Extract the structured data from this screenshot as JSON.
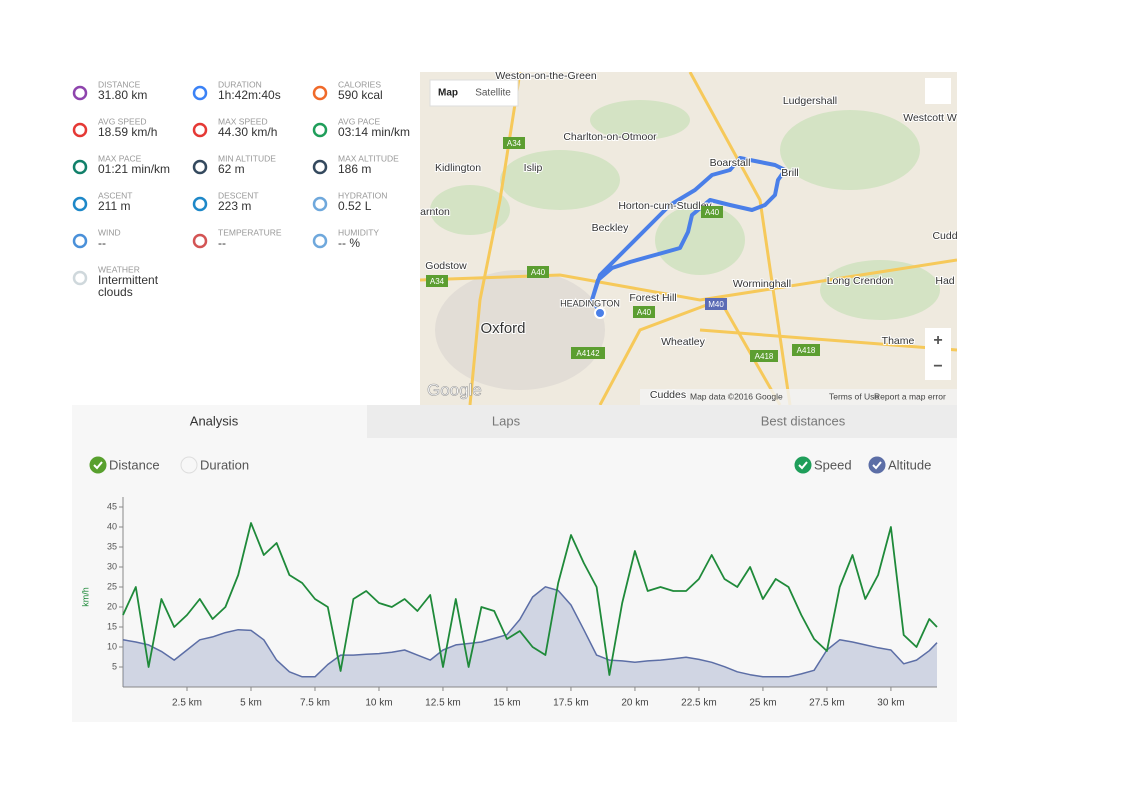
{
  "stats": [
    {
      "label": "DISTANCE",
      "value": "31.80 km"
    },
    {
      "label": "DURATION",
      "value": "1h:42m:40s"
    },
    {
      "label": "CALORIES",
      "value": "590 kcal"
    },
    {
      "label": "AVG SPEED",
      "value": "18.59 km/h"
    },
    {
      "label": "MAX SPEED",
      "value": "44.30 km/h"
    },
    {
      "label": "AVG PACE",
      "value": "03:14 min/km"
    },
    {
      "label": "MAX PACE",
      "value": "01:21 min/km"
    },
    {
      "label": "MIN ALTITUDE",
      "value": "62 m"
    },
    {
      "label": "MAX ALTITUDE",
      "value": "186 m"
    },
    {
      "label": "ASCENT",
      "value": "211 m"
    },
    {
      "label": "DESCENT",
      "value": "223 m"
    },
    {
      "label": "HYDRATION",
      "value": "0.52 L"
    },
    {
      "label": "WIND",
      "value": "--"
    },
    {
      "label": "TEMPERATURE",
      "value": "--"
    },
    {
      "label": "HUMIDITY",
      "value": "-- %"
    },
    {
      "label": "WEATHER",
      "value": "Intermittent clouds"
    }
  ],
  "map": {
    "buttons": [
      "Map",
      "Satellite"
    ],
    "labels": [
      "Weston-on-the-Green",
      "Ludgershall",
      "Westcott W",
      "Charlton-on-Otmoor",
      "Kidlington",
      "Islip",
      "Boarstall",
      "Brill",
      "Horton-cum-Studley",
      "arnton",
      "Beckley",
      "Cudd",
      "Godstow",
      "Worminghall",
      "Long Crendon",
      "Had",
      "HEADINGTON",
      "Forest Hill",
      "Oxford",
      "Wheatley",
      "Thame",
      "Cuddes"
    ],
    "roads": [
      "A34",
      "A40",
      "A34",
      "A40",
      "M40",
      "A40",
      "A418",
      "A418",
      "A4142"
    ],
    "logo": "Google",
    "footer": [
      "Map data ©2016 Google",
      "Terms of Use",
      "Report a map error"
    ]
  },
  "tabs": [
    "Analysis",
    "Laps",
    "Best distances"
  ],
  "toggles": [
    "Distance",
    "Duration",
    "Speed",
    "Altitude"
  ],
  "chart_data": {
    "type": "line",
    "y_label": "km/h",
    "x": [
      0,
      0.5,
      1,
      1.5,
      2,
      2.5,
      3,
      3.5,
      4,
      4.5,
      5,
      5.5,
      6,
      6.5,
      7,
      7.5,
      8,
      8.5,
      9,
      9.5,
      10,
      10.5,
      11,
      11.5,
      12,
      12.5,
      13,
      13.5,
      14,
      14.5,
      15,
      15.5,
      16,
      16.5,
      17,
      17.5,
      18,
      18.5,
      19,
      19.5,
      20,
      20.5,
      21,
      21.5,
      22,
      22.5,
      23,
      23.5,
      24,
      24.5,
      25,
      25.5,
      26,
      26.5,
      27,
      27.5,
      28,
      28.5,
      29,
      29.5,
      30,
      30.5,
      31,
      31.5,
      31.8
    ],
    "series": [
      {
        "name": "Speed",
        "color": "#1f8a3a",
        "values": [
          18,
          25,
          5,
          22,
          15,
          18,
          22,
          17,
          20,
          28,
          41,
          33,
          36,
          28,
          26,
          22,
          20,
          4,
          22,
          24,
          21,
          20,
          22,
          19,
          23,
          5,
          22,
          5,
          20,
          19,
          12,
          14,
          10,
          8,
          26,
          38,
          31,
          25,
          3,
          21,
          34,
          24,
          25,
          24,
          24,
          27,
          33,
          27,
          25,
          30,
          22,
          27,
          25,
          18,
          12,
          9,
          25,
          33,
          22,
          28,
          40,
          13,
          10,
          17,
          15
        ]
      },
      {
        "name": "Altitude",
        "color": "#5c6ea6",
        "axis": "y2",
        "values": [
          113,
          110,
          106,
          97,
          85,
          99,
          113,
          117,
          123,
          127,
          126,
          113,
          85,
          69,
          62,
          62,
          79,
          92,
          92,
          93,
          94,
          96,
          99,
          92,
          85,
          99,
          106,
          108,
          110,
          115,
          120,
          141,
          172,
          186,
          181,
          161,
          127,
          92,
          85,
          84,
          82,
          84,
          85,
          87,
          89,
          86,
          82,
          76,
          69,
          65,
          62,
          62,
          62,
          66,
          71,
          99,
          113,
          110,
          106,
          102,
          99,
          80,
          85,
          98,
          109
        ]
      }
    ],
    "xlim": [
      0,
      31.8
    ],
    "xticks": [
      {
        "value": 2.5,
        "label": "2.5 km"
      },
      {
        "value": 5,
        "label": "5 km"
      },
      {
        "value": 7.5,
        "label": "7.5 km"
      },
      {
        "value": 10,
        "label": "10 km"
      },
      {
        "value": 12.5,
        "label": "12.5 km"
      },
      {
        "value": 15,
        "label": "15 km"
      },
      {
        "value": 17.5,
        "label": "17.5 km"
      },
      {
        "value": 20,
        "label": "20 km"
      },
      {
        "value": 22.5,
        "label": "22.5 km"
      },
      {
        "value": 25,
        "label": "25 km"
      },
      {
        "value": 27.5,
        "label": "27.5 km"
      },
      {
        "value": 30,
        "label": "30 km"
      }
    ],
    "ylim": [
      0,
      45
    ],
    "yticks": [
      5,
      10,
      15,
      20,
      25,
      30,
      35,
      40,
      45
    ],
    "y2lim": [
      48,
      296
    ]
  }
}
